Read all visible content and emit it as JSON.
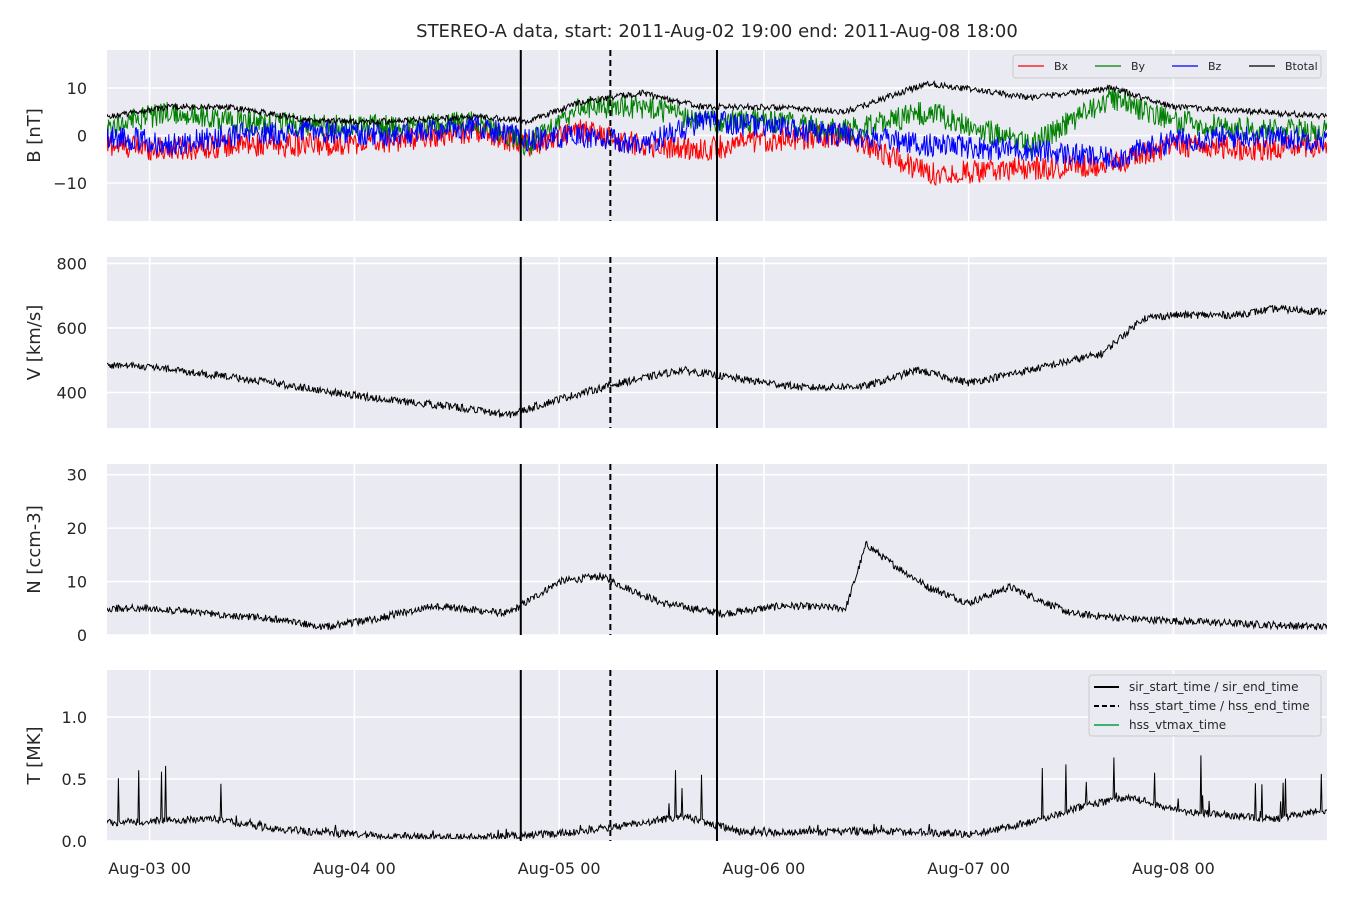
{
  "title": "STEREO-A data, start: 2011-Aug-02 19:00  end: 2011-Aug-08 18:00",
  "x_ticks": [
    {
      "t": 1.0,
      "label": "Aug-03 00"
    },
    {
      "t": 2.0,
      "label": "Aug-04 00"
    },
    {
      "t": 3.0,
      "label": "Aug-05 00"
    },
    {
      "t": 4.0,
      "label": "Aug-06 00"
    },
    {
      "t": 5.0,
      "label": "Aug-07 00"
    },
    {
      "t": 6.0,
      "label": "Aug-08 00"
    }
  ],
  "chart_data": [
    {
      "type": "line",
      "ylabel": "B [nT]",
      "ylim": [
        -18,
        18
      ],
      "yticks": [
        {
          "v": 10,
          "label": "10"
        },
        {
          "v": 0,
          "label": "0"
        },
        {
          "v": -10,
          "label": "−10"
        }
      ],
      "grid": true,
      "legend": "top-right",
      "series": [
        {
          "name": "Bx",
          "color": "#ff0000",
          "x": [
            0.8,
            1.1,
            1.4,
            1.8,
            2.2,
            2.6,
            2.85,
            3.1,
            3.4,
            3.7,
            4.0,
            4.4,
            4.8,
            5.3,
            5.7,
            6.0,
            6.4,
            6.75
          ],
          "y": [
            -2,
            -3,
            -2,
            -2,
            -1,
            1,
            -2,
            1,
            -2,
            -3,
            -1,
            0,
            -8,
            -7,
            -6,
            -2,
            -3,
            -2
          ]
        },
        {
          "name": "By",
          "color": "#008000",
          "x": [
            0.8,
            1.1,
            1.4,
            1.8,
            2.2,
            2.6,
            2.85,
            3.1,
            3.4,
            3.7,
            4.0,
            4.4,
            4.8,
            5.3,
            5.7,
            6.0,
            6.4,
            6.75
          ],
          "y": [
            2,
            5,
            3,
            2,
            2,
            3,
            -2,
            6,
            6,
            3,
            3,
            1,
            5,
            -2,
            8,
            3,
            1,
            1
          ]
        },
        {
          "name": "Bz",
          "color": "#0000ff",
          "x": [
            0.8,
            1.1,
            1.4,
            1.8,
            2.2,
            2.6,
            2.85,
            3.1,
            3.4,
            3.7,
            4.0,
            4.4,
            4.8,
            5.3,
            5.7,
            6.0,
            6.4,
            6.75
          ],
          "y": [
            0,
            -2,
            0,
            1,
            0,
            2,
            -1,
            0,
            -2,
            3,
            2,
            0,
            -2,
            -3,
            -5,
            -1,
            0,
            -1
          ]
        },
        {
          "name": "Btotal",
          "color": "#000000",
          "x": [
            0.8,
            1.1,
            1.4,
            1.8,
            2.2,
            2.6,
            2.85,
            3.1,
            3.4,
            3.7,
            4.0,
            4.4,
            4.8,
            5.3,
            5.7,
            6.0,
            6.4,
            6.75
          ],
          "y": [
            4,
            6,
            6,
            3,
            3,
            4,
            3,
            7,
            9,
            6,
            6,
            5,
            11,
            8,
            10,
            6,
            5,
            4
          ]
        }
      ]
    },
    {
      "type": "line",
      "ylabel": "V [km/s]",
      "ylim": [
        290,
        820
      ],
      "yticks": [
        {
          "v": 800,
          "label": "800"
        },
        {
          "v": 600,
          "label": "600"
        },
        {
          "v": 400,
          "label": "400"
        }
      ],
      "grid": true,
      "series": [
        {
          "name": "",
          "color": "#000000",
          "x": [
            0.8,
            1.0,
            1.3,
            1.6,
            1.9,
            2.2,
            2.5,
            2.75,
            3.0,
            3.3,
            3.6,
            3.9,
            4.2,
            4.5,
            4.75,
            5.0,
            5.3,
            5.65,
            5.85,
            6.0,
            6.3,
            6.5,
            6.75
          ],
          "y": [
            485,
            480,
            455,
            430,
            400,
            375,
            355,
            330,
            380,
            430,
            470,
            440,
            415,
            420,
            470,
            430,
            470,
            520,
            630,
            640,
            640,
            660,
            650
          ]
        }
      ]
    },
    {
      "type": "line",
      "ylabel": "N [ccm-3]",
      "ylim": [
        0,
        32
      ],
      "yticks": [
        {
          "v": 30,
          "label": "30"
        },
        {
          "v": 20,
          "label": "20"
        },
        {
          "v": 10,
          "label": "10"
        },
        {
          "v": 0,
          "label": "0"
        }
      ],
      "grid": true,
      "series": [
        {
          "name": "",
          "color": "#000000",
          "x": [
            0.8,
            1.0,
            1.3,
            1.6,
            1.85,
            2.1,
            2.4,
            2.75,
            3.0,
            3.2,
            3.5,
            3.8,
            4.1,
            4.4,
            4.5,
            4.6,
            4.8,
            5.0,
            5.2,
            5.5,
            5.8,
            6.1,
            6.4,
            6.75
          ],
          "y": [
            5,
            5,
            4,
            3,
            1.5,
            3,
            5.5,
            4,
            10,
            11,
            6,
            4,
            5.5,
            5,
            17,
            14,
            9,
            6,
            9,
            4,
            3,
            2.5,
            2,
            1.5
          ]
        }
      ]
    },
    {
      "type": "line",
      "ylabel": "T [MK]",
      "ylim": [
        0.0,
        1.38
      ],
      "yticks": [
        {
          "v": 1.0,
          "label": "1.0"
        },
        {
          "v": 0.5,
          "label": "0.5"
        },
        {
          "v": 0.0,
          "label": "0.0"
        }
      ],
      "grid": true,
      "legend": "top-right",
      "series": [
        {
          "name": "",
          "color": "#000000",
          "x": [
            0.8,
            1.0,
            1.3,
            1.6,
            1.9,
            2.2,
            2.5,
            2.75,
            3.0,
            3.3,
            3.6,
            3.9,
            4.2,
            4.5,
            4.8,
            5.0,
            5.3,
            5.6,
            5.8,
            6.0,
            6.3,
            6.5,
            6.75
          ],
          "y": [
            0.15,
            0.16,
            0.18,
            0.1,
            0.06,
            0.04,
            0.03,
            0.04,
            0.06,
            0.12,
            0.2,
            0.07,
            0.07,
            0.08,
            0.07,
            0.05,
            0.15,
            0.3,
            0.35,
            0.25,
            0.2,
            0.18,
            0.25
          ]
        }
      ]
    }
  ],
  "vertical_lines": [
    {
      "t": 2.8125,
      "style": "solid",
      "color": "#000000"
    },
    {
      "t": 3.25,
      "style": "dashed",
      "color": "#000000"
    },
    {
      "t": 3.7708,
      "style": "solid",
      "color": "#000000"
    }
  ],
  "event_legend": {
    "placement": "top-right",
    "items": [
      {
        "label": "sir_start_time / sir_end_time",
        "style": "solid",
        "color": "#000000"
      },
      {
        "label": "hss_start_time / hss_end_time",
        "style": "dashed",
        "color": "#000000"
      },
      {
        "label": "hss_vtmax_time",
        "style": "solid",
        "color": "#3cb371"
      }
    ]
  },
  "colors": {
    "axes_bg": "#eaeaf2",
    "grid": "#ffffff",
    "text": "#262626"
  }
}
